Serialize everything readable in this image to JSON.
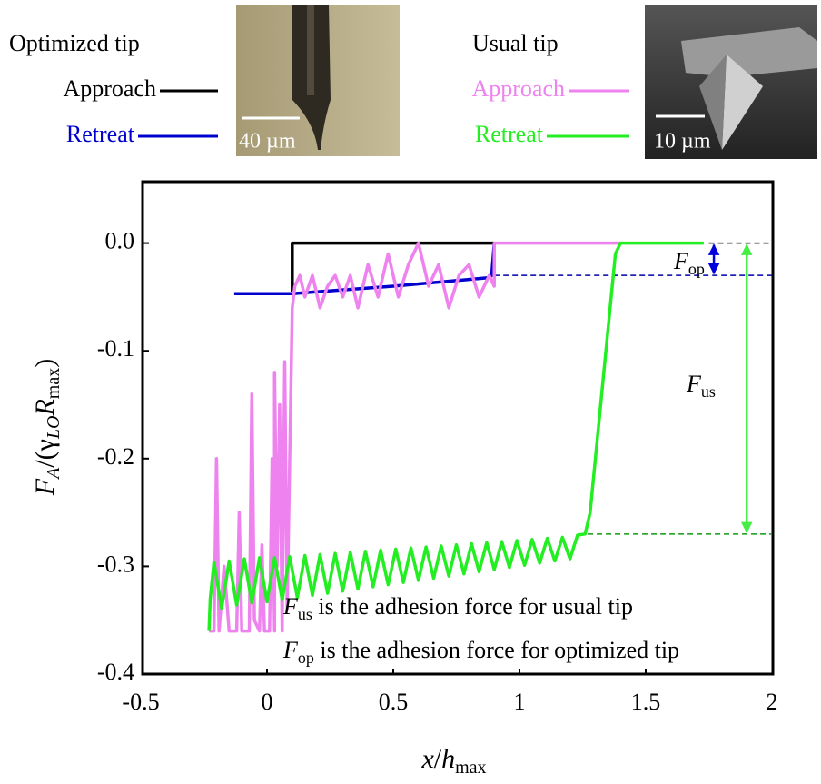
{
  "chart_data": {
    "type": "line",
    "legend_groups": [
      "Optimized tip",
      "Usual tip"
    ],
    "images": [
      {
        "scale_label": "40 µm"
      },
      {
        "scale_label": "10 µm"
      }
    ],
    "xlabel": [
      "x",
      "/",
      "h",
      "max"
    ],
    "ylabel": [
      "F",
      "A",
      "/(",
      "γ",
      "LO",
      "R",
      "max",
      ")"
    ],
    "xlim": [
      -0.5,
      2
    ],
    "ylim": [
      -0.4,
      0.057
    ],
    "xticks": [
      -0.5,
      0,
      0.5,
      1,
      1.5,
      2
    ],
    "yticks": [
      {
        "value": 0,
        "label": "0.0"
      },
      -0.1,
      -0.2,
      -0.3,
      -0.4
    ],
    "series": [
      {
        "name": "Approach",
        "color": "#000000",
        "x": [
          0.1,
          0.1,
          0.9
        ],
        "values": [
          -0.045,
          0.0,
          0.0
        ]
      },
      {
        "name": "Retreat",
        "color": "#0000cc",
        "x": [
          -0.13,
          0.1,
          0.5,
          0.88,
          0.89,
          0.9
        ],
        "values": [
          -0.047,
          -0.047,
          -0.04,
          -0.032,
          -0.03,
          0.0
        ]
      },
      {
        "name": "Approach",
        "color": "#ee82ee",
        "x": [
          -0.23,
          -0.21,
          -0.2,
          -0.19,
          -0.17,
          -0.15,
          -0.12,
          -0.11,
          -0.1,
          -0.07,
          -0.06,
          -0.05,
          -0.03,
          -0.02,
          -0.01,
          0.01,
          0.02,
          0.03,
          0.03,
          0.04,
          0.05,
          0.06,
          0.07,
          0.08,
          0.09,
          0.1,
          0.11,
          0.13,
          0.15,
          0.18,
          0.21,
          0.24,
          0.27,
          0.3,
          0.33,
          0.36,
          0.4,
          0.44,
          0.48,
          0.52,
          0.56,
          0.6,
          0.64,
          0.68,
          0.72,
          0.76,
          0.8,
          0.84,
          0.88,
          0.9,
          0.9,
          1.4
        ],
        "values": [
          -0.36,
          -0.36,
          -0.2,
          -0.36,
          -0.3,
          -0.36,
          -0.36,
          -0.25,
          -0.36,
          -0.36,
          -0.14,
          -0.35,
          -0.36,
          -0.28,
          -0.36,
          -0.36,
          -0.2,
          -0.36,
          -0.12,
          -0.3,
          -0.15,
          -0.36,
          -0.11,
          -0.34,
          -0.2,
          -0.06,
          -0.04,
          -0.03,
          -0.05,
          -0.03,
          -0.06,
          -0.04,
          -0.03,
          -0.05,
          -0.03,
          -0.06,
          -0.02,
          -0.05,
          -0.01,
          -0.05,
          -0.02,
          0.0,
          -0.04,
          -0.02,
          -0.06,
          -0.03,
          -0.02,
          -0.05,
          -0.03,
          -0.04,
          0.0,
          0.0
        ]
      },
      {
        "name": "Retreat",
        "color": "#22ee22",
        "x": [
          -0.23,
          -0.225,
          -0.21,
          -0.18,
          -0.15,
          -0.12,
          -0.09,
          -0.06,
          -0.03,
          0.0,
          0.03,
          0.06,
          0.09,
          0.12,
          0.15,
          0.18,
          0.21,
          0.24,
          0.27,
          0.3,
          0.33,
          0.36,
          0.39,
          0.42,
          0.45,
          0.48,
          0.51,
          0.54,
          0.57,
          0.6,
          0.63,
          0.66,
          0.69,
          0.72,
          0.75,
          0.78,
          0.81,
          0.84,
          0.87,
          0.9,
          0.93,
          0.96,
          0.99,
          1.02,
          1.05,
          1.08,
          1.11,
          1.14,
          1.17,
          1.2,
          1.23,
          1.26,
          1.28,
          1.38,
          1.4,
          1.73
        ],
        "values": [
          -0.36,
          -0.33,
          -0.296,
          -0.339,
          -0.295,
          -0.336,
          -0.293,
          -0.334,
          -0.292,
          -0.333,
          -0.292,
          -0.331,
          -0.291,
          -0.329,
          -0.29,
          -0.327,
          -0.289,
          -0.325,
          -0.288,
          -0.323,
          -0.287,
          -0.321,
          -0.286,
          -0.319,
          -0.285,
          -0.317,
          -0.284,
          -0.315,
          -0.283,
          -0.313,
          -0.282,
          -0.311,
          -0.281,
          -0.309,
          -0.28,
          -0.307,
          -0.279,
          -0.305,
          -0.278,
          -0.303,
          -0.277,
          -0.301,
          -0.276,
          -0.299,
          -0.275,
          -0.297,
          -0.274,
          -0.295,
          -0.273,
          -0.293,
          -0.271,
          -0.27,
          -0.25,
          -0.01,
          0.0,
          0.0
        ]
      }
    ],
    "reference_lines": [
      {
        "y": 0.0,
        "x": [
          1.75,
          2
        ],
        "color": "#000000"
      },
      {
        "y": -0.03,
        "x": [
          0.9,
          2
        ],
        "color": "#0000aa"
      },
      {
        "y": -0.27,
        "x": [
          1.27,
          2
        ],
        "color": "#119911"
      }
    ],
    "arrows": [
      {
        "x": 1.77,
        "y": [
          0.0,
          -0.03
        ],
        "color": "#0000dd",
        "symbol": "F",
        "sub": "op"
      },
      {
        "x": 1.9,
        "y": [
          0.0,
          -0.27
        ],
        "color": "#44ee44",
        "symbol": "F",
        "sub": "us"
      }
    ],
    "notes": [
      {
        "symbol": "F",
        "sub": "us",
        "text": " is the adhesion force for usual tip"
      },
      {
        "symbol": "F",
        "sub": "op",
        "text": " is the adhesion force for optimized tip"
      }
    ]
  }
}
